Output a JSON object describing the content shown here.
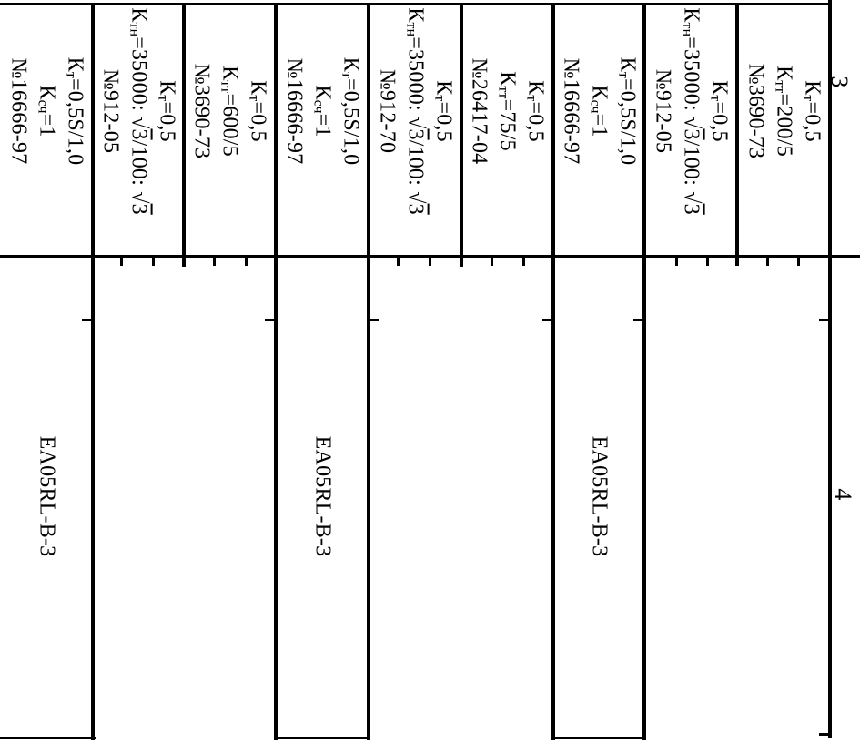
{
  "page": {
    "background": "#ffffff",
    "ink": "#000000"
  },
  "table": {
    "column_headers": [
      {
        "label": "3"
      },
      {
        "label": "4"
      }
    ],
    "meter_type_label": "EA05RL-B-3",
    "rows": [
      {
        "lines": [
          [
            {
              "t": "К"
            },
            {
              "t": "т",
              "sub": true
            },
            {
              "t": "=0,5"
            }
          ],
          [
            {
              "t": "К"
            },
            {
              "t": "тт",
              "sub": true
            },
            {
              "t": "=200/5"
            }
          ],
          [
            {
              "t": "№3690-73"
            }
          ]
        ],
        "meter": ""
      },
      {
        "lines": [
          [
            {
              "t": "К"
            },
            {
              "t": "т",
              "sub": true
            },
            {
              "t": "=0,5"
            }
          ],
          [
            {
              "t": "К"
            },
            {
              "t": "тн",
              "sub": true
            },
            {
              "t": "=35000: "
            },
            {
              "t": "√"
            },
            {
              "t": "3",
              "over": true
            },
            {
              "t": "/100: "
            },
            {
              "t": "√"
            },
            {
              "t": "3",
              "over": true
            }
          ],
          [
            {
              "t": "№912-05"
            }
          ]
        ],
        "meter": ""
      },
      {
        "lines": [
          [
            {
              "t": "К"
            },
            {
              "t": "т",
              "sub": true
            },
            {
              "t": "=0,5S/1,0"
            }
          ],
          [
            {
              "t": "К"
            },
            {
              "t": "сч",
              "sub": true
            },
            {
              "t": "=1"
            }
          ],
          [
            {
              "t": "№16666-97"
            }
          ]
        ],
        "meter": "EA05RL-B-3"
      },
      {
        "lines": [
          [
            {
              "t": "К"
            },
            {
              "t": "т",
              "sub": true
            },
            {
              "t": "=0,5"
            }
          ],
          [
            {
              "t": "К"
            },
            {
              "t": "тт",
              "sub": true
            },
            {
              "t": "=75/5"
            }
          ],
          [
            {
              "t": "№26417-04"
            }
          ]
        ],
        "meter": ""
      },
      {
        "lines": [
          [
            {
              "t": "К"
            },
            {
              "t": "т",
              "sub": true
            },
            {
              "t": "=0,5"
            }
          ],
          [
            {
              "t": "К"
            },
            {
              "t": "тн",
              "sub": true
            },
            {
              "t": "=35000: "
            },
            {
              "t": "√"
            },
            {
              "t": "3",
              "over": true
            },
            {
              "t": "/100: "
            },
            {
              "t": "√"
            },
            {
              "t": "3",
              "over": true
            }
          ],
          [
            {
              "t": "№912-70"
            }
          ]
        ],
        "meter": ""
      },
      {
        "lines": [
          [
            {
              "t": "К"
            },
            {
              "t": "т",
              "sub": true
            },
            {
              "t": "=0,5S/1,0"
            }
          ],
          [
            {
              "t": "К"
            },
            {
              "t": "сч",
              "sub": true
            },
            {
              "t": "=1"
            }
          ],
          [
            {
              "t": "№16666-97"
            }
          ]
        ],
        "meter": "EA05RL-B-3"
      },
      {
        "lines": [
          [
            {
              "t": "К"
            },
            {
              "t": "т",
              "sub": true
            },
            {
              "t": "=0,5"
            }
          ],
          [
            {
              "t": "К"
            },
            {
              "t": "тт",
              "sub": true
            },
            {
              "t": "=600/5"
            }
          ],
          [
            {
              "t": "№3690-73"
            }
          ]
        ],
        "meter": ""
      },
      {
        "lines": [
          [
            {
              "t": "К"
            },
            {
              "t": "т",
              "sub": true
            },
            {
              "t": "=0,5"
            }
          ],
          [
            {
              "t": "К"
            },
            {
              "t": "тн",
              "sub": true
            },
            {
              "t": "=35000: "
            },
            {
              "t": "√"
            },
            {
              "t": "3",
              "over": true
            },
            {
              "t": "/100: "
            },
            {
              "t": "√"
            },
            {
              "t": "3",
              "over": true
            }
          ],
          [
            {
              "t": "№912-05"
            }
          ]
        ],
        "meter": ""
      },
      {
        "lines": [
          [
            {
              "t": "К"
            },
            {
              "t": "т",
              "sub": true
            },
            {
              "t": "=0,5S/1,0"
            }
          ],
          [
            {
              "t": "К"
            },
            {
              "t": "сч",
              "sub": true
            },
            {
              "t": "=1"
            }
          ],
          [
            {
              "t": "№16666-97"
            }
          ]
        ],
        "meter": "EA05RL-B-3"
      }
    ]
  }
}
